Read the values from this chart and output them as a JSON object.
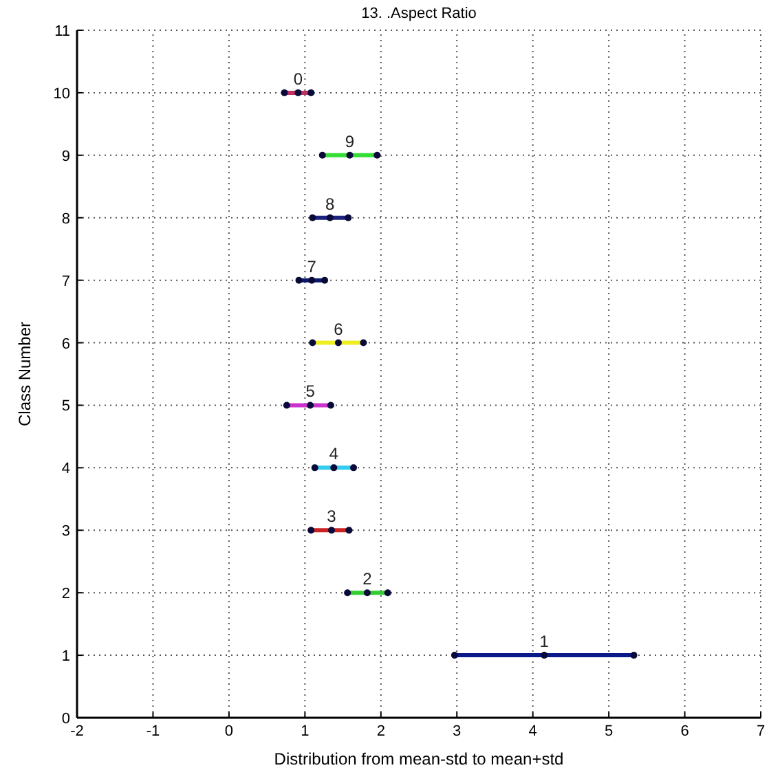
{
  "chart_data": {
    "type": "line",
    "title": "13.  .Aspect Ratio",
    "xlabel": "Distribution from mean-std to mean+std",
    "ylabel": "Class Number",
    "xlim": [
      -2,
      7
    ],
    "xticks": [
      -2,
      -1,
      0,
      1,
      2,
      3,
      4,
      5,
      6,
      7
    ],
    "ylim": [
      0,
      11
    ],
    "yticks": [
      0,
      1,
      2,
      3,
      4,
      5,
      6,
      7,
      8,
      9,
      10,
      11
    ],
    "grid": true,
    "marker": "circle",
    "line_style": "solid",
    "series": [
      {
        "name": "0",
        "color": "#c03060",
        "x": [
          0.73,
          0.91,
          1.08
        ],
        "values": [
          10,
          10,
          10
        ]
      },
      {
        "name": "1",
        "color": "#0a1a8a",
        "x": [
          2.97,
          4.15,
          5.33
        ],
        "values": [
          1,
          1,
          1
        ]
      },
      {
        "name": "2",
        "color": "#33cc33",
        "x": [
          1.56,
          1.82,
          2.09
        ],
        "values": [
          2,
          2,
          2
        ]
      },
      {
        "name": "3",
        "color": "#cc2222",
        "x": [
          1.08,
          1.35,
          1.58
        ],
        "values": [
          3,
          3,
          3
        ]
      },
      {
        "name": "4",
        "color": "#33ccee",
        "x": [
          1.13,
          1.38,
          1.64
        ],
        "values": [
          4,
          4,
          4
        ]
      },
      {
        "name": "5",
        "color": "#cc33cc",
        "x": [
          0.76,
          1.07,
          1.34
        ],
        "values": [
          5,
          5,
          5
        ]
      },
      {
        "name": "6",
        "color": "#eeee22",
        "x": [
          1.1,
          1.44,
          1.77
        ],
        "values": [
          6,
          6,
          6
        ]
      },
      {
        "name": "7",
        "color": "#0a1a6a",
        "x": [
          0.92,
          1.09,
          1.26
        ],
        "values": [
          7,
          7,
          7
        ]
      },
      {
        "name": "8",
        "color": "#1a237e",
        "x": [
          1.1,
          1.33,
          1.57
        ],
        "values": [
          8,
          8,
          8
        ]
      },
      {
        "name": "9",
        "color": "#33dd33",
        "x": [
          1.23,
          1.59,
          1.95
        ],
        "values": [
          9,
          9,
          9
        ]
      }
    ]
  }
}
